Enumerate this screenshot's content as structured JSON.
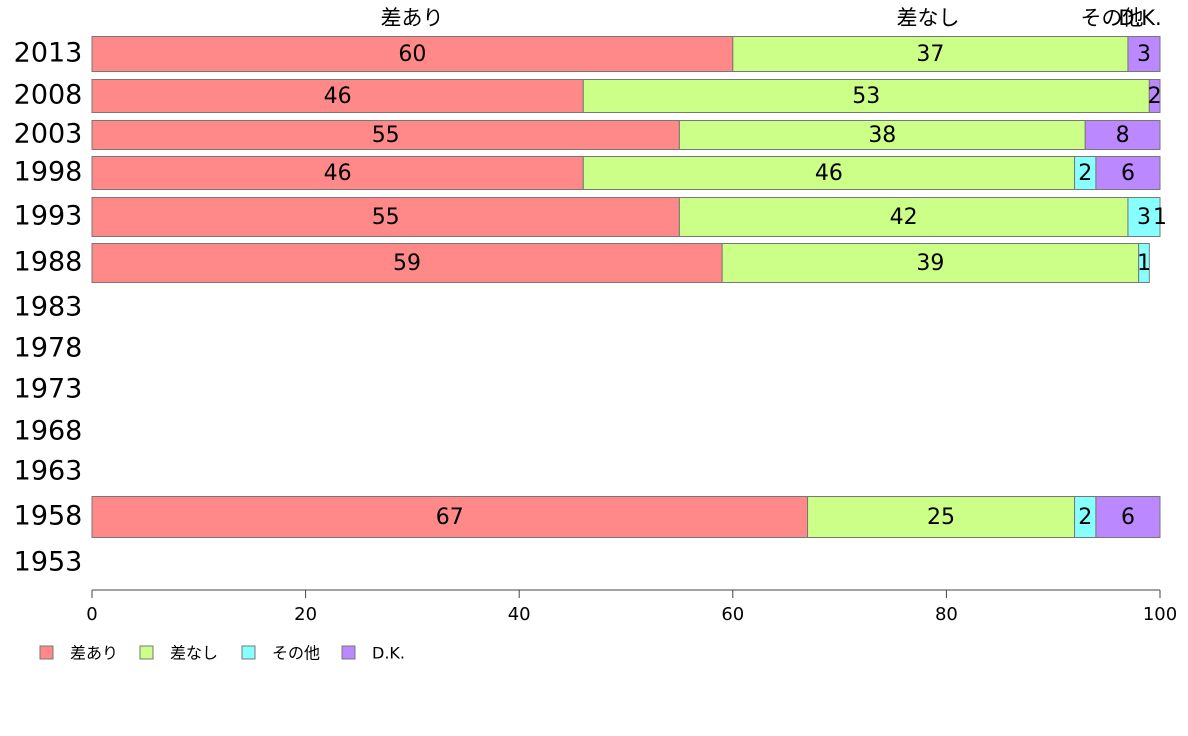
{
  "chart_data": {
    "type": "bar",
    "orientation": "horizontal-stacked-100",
    "categories": [
      "2013",
      "2008",
      "2003",
      "1998",
      "1993",
      "1988",
      "1983",
      "1978",
      "1973",
      "1968",
      "1963",
      "1958",
      "1953"
    ],
    "series": [
      {
        "name": "差あり",
        "color": "#ff8888",
        "values": [
          60,
          46,
          55,
          46,
          55,
          59,
          null,
          null,
          null,
          null,
          null,
          67,
          null
        ]
      },
      {
        "name": "差なし",
        "color": "#ccff88",
        "values": [
          37,
          53,
          38,
          46,
          42,
          39,
          null,
          null,
          null,
          null,
          null,
          25,
          null
        ]
      },
      {
        "name": "その他",
        "color": "#88ffff",
        "values": [
          0,
          0,
          0,
          2,
          3,
          1,
          null,
          null,
          null,
          null,
          null,
          2,
          null
        ]
      },
      {
        "name": "D.K.",
        "color": "#bb88ff",
        "values": [
          3,
          2,
          8,
          6,
          1,
          0,
          null,
          null,
          null,
          null,
          null,
          6,
          null
        ]
      }
    ],
    "top_labels": [
      "差あり",
      "差なし",
      "その他",
      "D.K."
    ],
    "xlim": [
      0,
      100
    ],
    "xticks": [
      0,
      20,
      40,
      60,
      80,
      100
    ],
    "xlabel": "",
    "ylabel": "",
    "title": "",
    "legend_position": "bottom-left",
    "grid": false
  }
}
